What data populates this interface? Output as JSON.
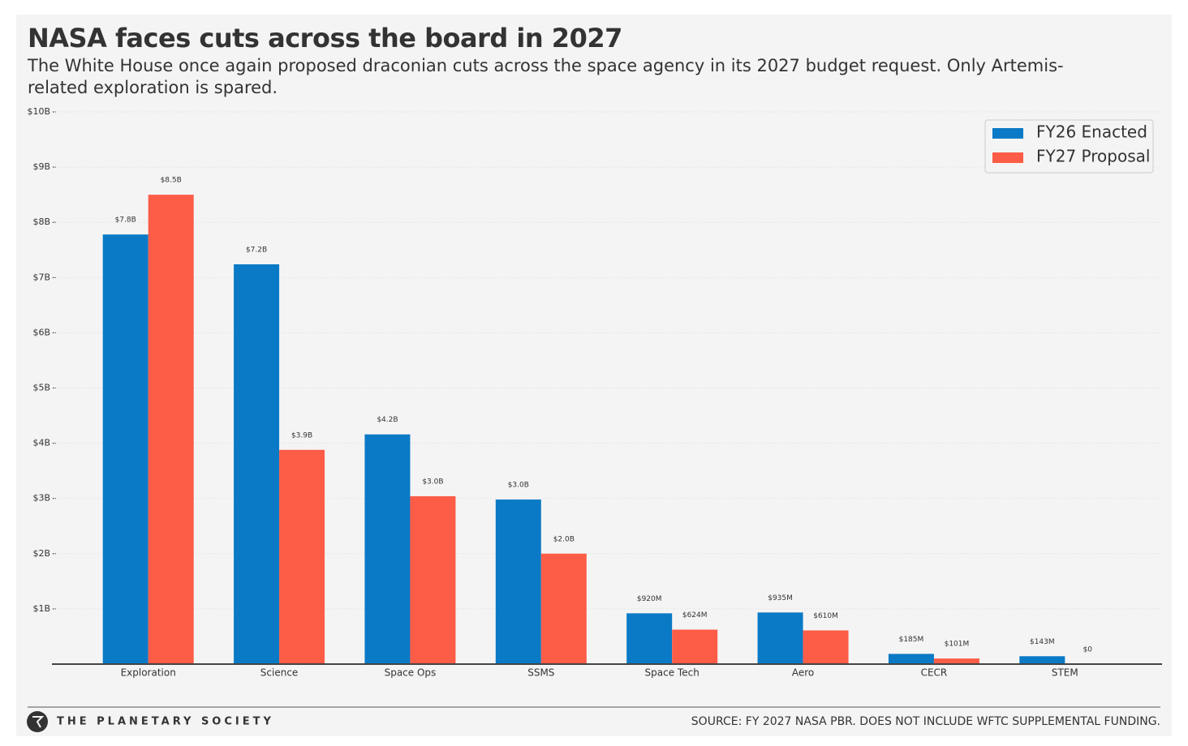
{
  "chart_data": {
    "type": "bar",
    "title": "NASA faces cuts across the board in 2027",
    "subtitle": "The White House once again proposed draconian cuts across the space agency in its 2027 budget request. Only Artemis-related exploration is spared.",
    "categories": [
      "Exploration",
      "Science",
      "Space Ops",
      "SSMS",
      "Space Tech",
      "Aero",
      "CECR",
      "STEM"
    ],
    "series": [
      {
        "name": "FY26 Enacted",
        "color": "#0a7ac6",
        "values": [
          7.78,
          7.24,
          4.16,
          2.98,
          0.92,
          0.935,
          0.185,
          0.143
        ],
        "value_labels": [
          "$7.8B",
          "$7.2B",
          "$4.2B",
          "$3.0B",
          "$920M",
          "$935M",
          "$185M",
          "$143M"
        ]
      },
      {
        "name": "FY27 Proposal",
        "color": "#fd5c47",
        "values": [
          8.5,
          3.88,
          3.04,
          2.0,
          0.624,
          0.61,
          0.101,
          0
        ],
        "value_labels": [
          "$8.5B",
          "$3.9B",
          "$3.0B",
          "$2.0B",
          "$624M",
          "$610M",
          "$101M",
          "$0"
        ]
      }
    ],
    "ylim": [
      0,
      10
    ],
    "yticks": [
      {
        "value": 1,
        "label": "$1B"
      },
      {
        "value": 2,
        "label": "$2B"
      },
      {
        "value": 3,
        "label": "$3B"
      },
      {
        "value": 4,
        "label": "$4B"
      },
      {
        "value": 5,
        "label": "$5B"
      },
      {
        "value": 6,
        "label": "$6B"
      },
      {
        "value": 7,
        "label": "$7B"
      },
      {
        "value": 8,
        "label": "$8B"
      },
      {
        "value": 9,
        "label": "$9B"
      },
      {
        "value": 10,
        "label": "$10B"
      }
    ],
    "grid": true,
    "legend": "upper right",
    "branding": "THE PLANETARY SOCIETY",
    "source": "SOURCE: FY 2027 NASA PBR. DOES NOT INCLUDE WFTC SUPPLEMENTAL FUNDING."
  }
}
